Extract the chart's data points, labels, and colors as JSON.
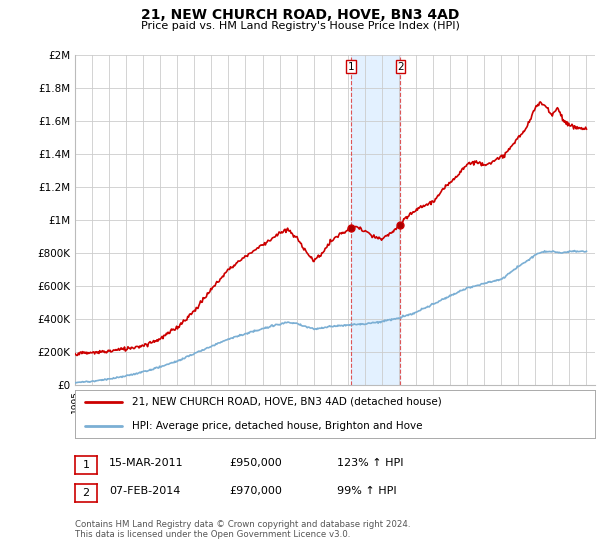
{
  "title": "21, NEW CHURCH ROAD, HOVE, BN3 4AD",
  "subtitle": "Price paid vs. HM Land Registry's House Price Index (HPI)",
  "ylabel_ticks": [
    0,
    200000,
    400000,
    600000,
    800000,
    1000000,
    1200000,
    1400000,
    1600000,
    1800000,
    2000000
  ],
  "ylabel_labels": [
    "£0",
    "£200K",
    "£400K",
    "£600K",
    "£800K",
    "£1M",
    "£1.2M",
    "£1.4M",
    "£1.6M",
    "£1.8M",
    "£2M"
  ],
  "ylim": [
    0,
    2000000
  ],
  "xlim_start": 1995.0,
  "xlim_end": 2025.5,
  "red_line_color": "#cc0000",
  "blue_line_color": "#7bafd4",
  "purchase1_date": 2011.21,
  "purchase1_price": 950000,
  "purchase2_date": 2014.09,
  "purchase2_price": 970000,
  "legend1_label": "21, NEW CHURCH ROAD, HOVE, BN3 4AD (detached house)",
  "legend2_label": "HPI: Average price, detached house, Brighton and Hove",
  "table_row1": [
    "1",
    "15-MAR-2011",
    "£950,000",
    "123% ↑ HPI"
  ],
  "table_row2": [
    "2",
    "07-FEB-2014",
    "£970,000",
    "99% ↑ HPI"
  ],
  "footer": "Contains HM Land Registry data © Crown copyright and database right 2024.\nThis data is licensed under the Open Government Licence v3.0.",
  "background_color": "#ffffff",
  "grid_color": "#cccccc",
  "shade_color": "#ddeeff",
  "red_knots_x": [
    1995,
    1996,
    1997,
    1998,
    1999,
    2000,
    2001,
    2002,
    2003,
    2004,
    2005,
    2006,
    2007,
    2007.5,
    2008,
    2008.5,
    2009,
    2009.5,
    2010,
    2010.5,
    2011.21,
    2011.5,
    2012,
    2012.5,
    2013,
    2013.5,
    2014.09,
    2014.5,
    2015,
    2015.5,
    2016,
    2016.5,
    2017,
    2017.5,
    2018,
    2018.5,
    2019,
    2019.5,
    2020,
    2020.5,
    2021,
    2021.5,
    2022,
    2022.3,
    2022.6,
    2023,
    2023.3,
    2023.7,
    2024,
    2024.5,
    2025
  ],
  "red_knots_y": [
    190000,
    195000,
    205000,
    220000,
    240000,
    280000,
    350000,
    450000,
    580000,
    700000,
    780000,
    850000,
    920000,
    940000,
    890000,
    820000,
    750000,
    800000,
    870000,
    910000,
    950000,
    960000,
    930000,
    900000,
    880000,
    920000,
    970000,
    1020000,
    1060000,
    1090000,
    1110000,
    1170000,
    1230000,
    1280000,
    1340000,
    1350000,
    1340000,
    1350000,
    1380000,
    1430000,
    1500000,
    1560000,
    1680000,
    1710000,
    1690000,
    1640000,
    1680000,
    1600000,
    1570000,
    1560000,
    1550000
  ],
  "blue_knots_x": [
    1995,
    1996,
    1997,
    1998,
    1999,
    2000,
    2001,
    2002,
    2003,
    2004,
    2005,
    2006,
    2007,
    2007.5,
    2008,
    2008.5,
    2009,
    2009.5,
    2010,
    2011,
    2012,
    2013,
    2014,
    2015,
    2016,
    2017,
    2018,
    2018.5,
    2019,
    2020,
    2020.5,
    2021,
    2021.5,
    2022,
    2022.5,
    2023,
    2023.5,
    2024,
    2025
  ],
  "blue_knots_y": [
    15000,
    22000,
    35000,
    55000,
    80000,
    110000,
    145000,
    190000,
    235000,
    280000,
    310000,
    340000,
    370000,
    380000,
    370000,
    355000,
    340000,
    345000,
    355000,
    365000,
    370000,
    385000,
    405000,
    440000,
    490000,
    540000,
    590000,
    600000,
    615000,
    640000,
    680000,
    720000,
    750000,
    790000,
    810000,
    810000,
    800000,
    810000,
    810000
  ]
}
